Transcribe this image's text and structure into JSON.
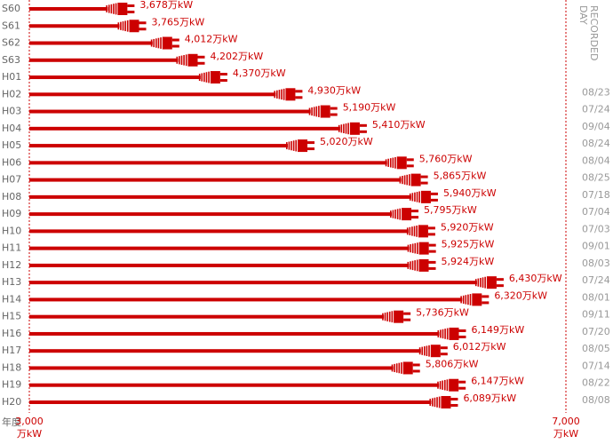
{
  "chart_data": {
    "type": "bar",
    "categories": [
      "S60",
      "S61",
      "S62",
      "S63",
      "H01",
      "H02",
      "H03",
      "H04",
      "H05",
      "H06",
      "H07",
      "H08",
      "H09",
      "H10",
      "H11",
      "H12",
      "H13",
      "H14",
      "H15",
      "H16",
      "H17",
      "H18",
      "H19",
      "H20"
    ],
    "values": [
      3678,
      3765,
      4012,
      4202,
      4370,
      4930,
      5190,
      5410,
      5020,
      5760,
      5865,
      5940,
      5795,
      5920,
      5925,
      5924,
      6430,
      6320,
      5736,
      6149,
      6012,
      5806,
      6147,
      6089
    ],
    "value_labels": [
      "3,678万kW",
      "3,765万kW",
      "4,012万kW",
      "4,202万kW",
      "4,370万kW",
      "4,930万kW",
      "5,190万kW",
      "5,410万kW",
      "5,020万kW",
      "5,760万kW",
      "5,865万kW",
      "5,940万kW",
      "5,795万kW",
      "5,920万kW",
      "5,925万kW",
      "5,924万kW",
      "6,430万kW",
      "6,320万kW",
      "5,736万kW",
      "6,149万kW",
      "6,012万kW",
      "5,806万kW",
      "6,147万kW",
      "6,089万kW"
    ],
    "recorded_days": [
      null,
      null,
      null,
      null,
      null,
      "08/23",
      "07/24",
      "09/04",
      "08/24",
      "08/04",
      "08/25",
      "07/18",
      "07/04",
      "07/03",
      "09/01",
      "08/03",
      "07/24",
      "08/01",
      "09/11",
      "07/20",
      "08/05",
      "07/14",
      "08/22",
      "08/08"
    ],
    "recorded_day_heading": [
      "RECORDED",
      "DAY"
    ],
    "category_axis_label": "年度",
    "x_unit": "万kW",
    "xlim": [
      3000,
      7000
    ],
    "xticks": [
      {
        "value": 3000,
        "label": "3,000"
      },
      {
        "value": 7000,
        "label": "7,000"
      }
    ],
    "color": "#cc0000"
  }
}
